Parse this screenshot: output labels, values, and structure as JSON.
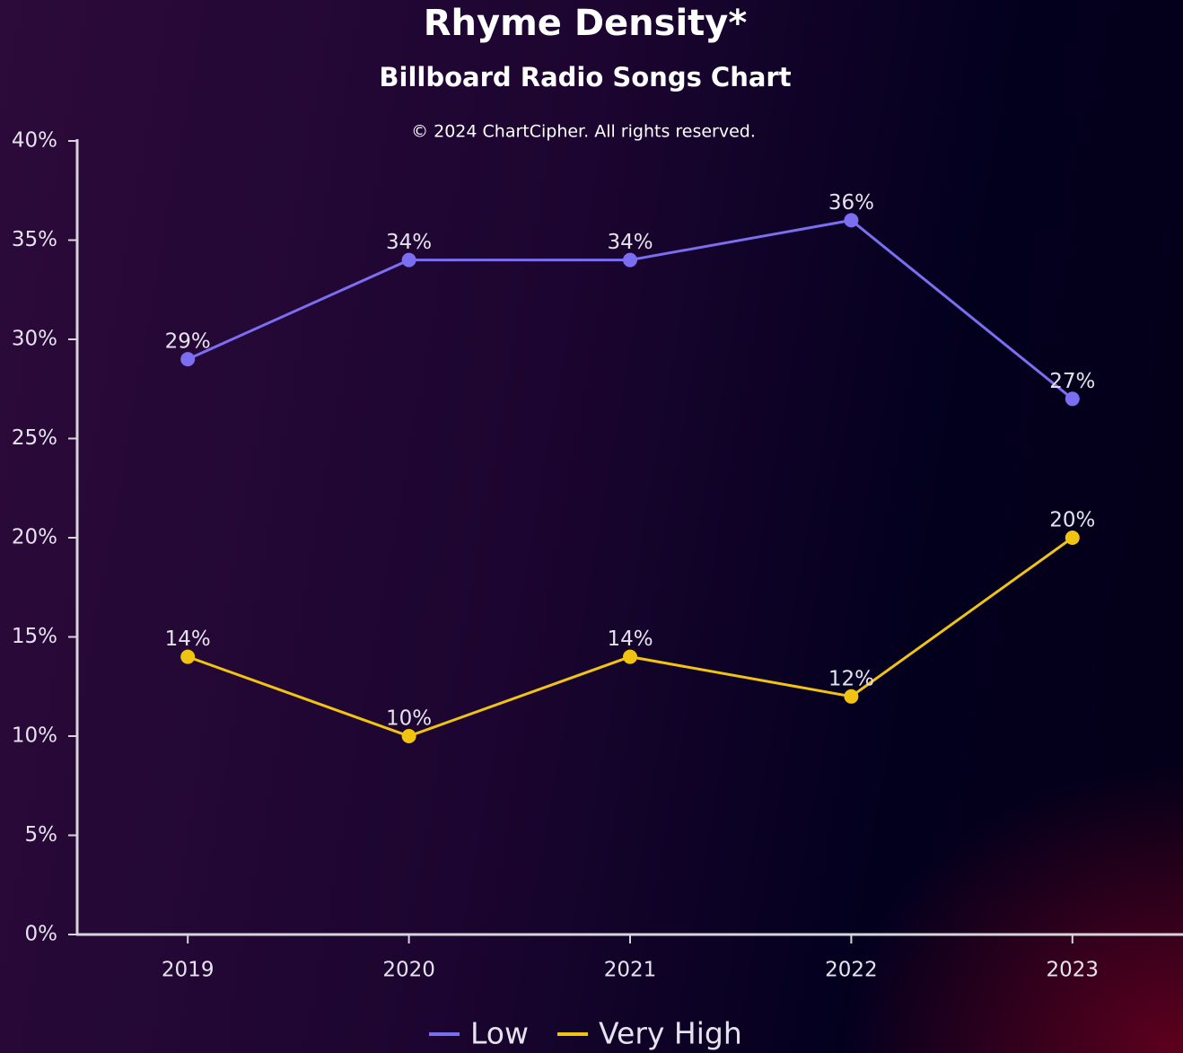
{
  "chart_data": {
    "type": "line",
    "title": "Rhyme Density*",
    "subtitle": "Billboard Radio Songs Chart",
    "credit": "© 2024 ChartCipher. All rights reserved.",
    "categories": [
      "2019",
      "2020",
      "2021",
      "2022",
      "2023"
    ],
    "series": [
      {
        "name": "Low",
        "color": "#7b6ef0",
        "values": [
          29,
          34,
          34,
          36,
          27
        ],
        "value_labels": [
          "29%",
          "34%",
          "34%",
          "36%",
          "27%"
        ]
      },
      {
        "name": "Very High",
        "color": "#f2c412",
        "values": [
          14,
          10,
          14,
          12,
          20
        ],
        "value_labels": [
          "14%",
          "10%",
          "14%",
          "12%",
          "20%"
        ]
      }
    ],
    "ylim": [
      0,
      40
    ],
    "yticks": [
      {
        "value": 0,
        "label": "0%"
      },
      {
        "value": 5,
        "label": "5%"
      },
      {
        "value": 10,
        "label": "10%"
      },
      {
        "value": 15,
        "label": "15%"
      },
      {
        "value": 20,
        "label": "20%"
      },
      {
        "value": 25,
        "label": "25%"
      },
      {
        "value": 30,
        "label": "30%"
      },
      {
        "value": 35,
        "label": "35%"
      },
      {
        "value": 40,
        "label": "40%"
      }
    ],
    "grid": false,
    "legend": "bottom"
  }
}
